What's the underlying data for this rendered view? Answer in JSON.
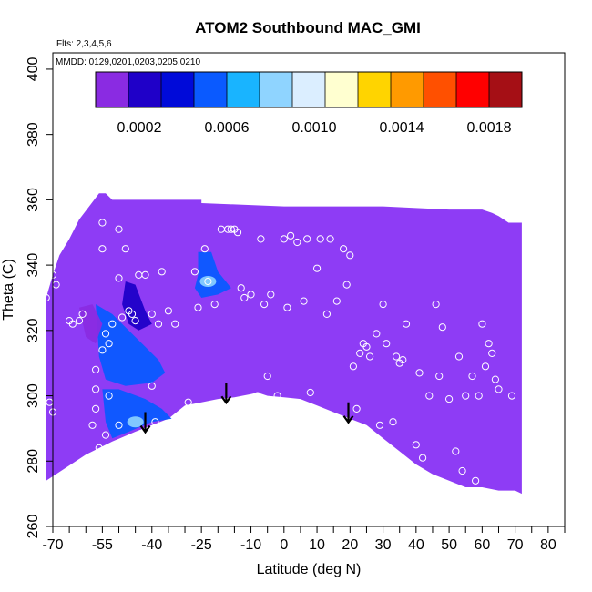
{
  "chart_data": {
    "type": "heatmap",
    "title": "ATOM2 Southbound MAC_GMI",
    "annotations": {
      "flights": "Flts: 2,3,4,5,6",
      "dates": "MMDD: 0129,0201,0203,0205,0210"
    },
    "xlabel": "Latitude (deg N)",
    "ylabel": "Theta (C)",
    "xlim": [
      -70,
      85
    ],
    "ylim": [
      260,
      405
    ],
    "x_tick_labels": [
      "-70",
      "-55",
      "-40",
      "-25",
      "-10",
      "0",
      "10",
      "20",
      "30",
      "40",
      "50",
      "60",
      "70",
      "80"
    ],
    "x_tick_values": [
      -70,
      -55,
      -40,
      -25,
      -10,
      0,
      10,
      20,
      30,
      40,
      50,
      60,
      70,
      80
    ],
    "x_minor_ticks": [
      -65,
      -60,
      -50,
      -45,
      -35,
      -30,
      -20,
      -15,
      -5,
      5,
      15,
      25,
      35,
      45,
      55,
      65,
      75,
      85
    ],
    "y_ticks": [
      260,
      280,
      300,
      320,
      340,
      360,
      380,
      400
    ],
    "colorbar": {
      "range": [
        0,
        0.00195
      ],
      "tick_values": [
        0.0002,
        0.0006,
        0.001,
        0.0014,
        0.0018
      ],
      "tick_labels": [
        "0.0002",
        "0.0006",
        "0.0010",
        "0.0014",
        "0.0018"
      ],
      "bands": [
        "#8a2be2",
        "#1f00c8",
        "#000ad9",
        "#0a5aff",
        "#19b4ff",
        "#8fd4ff",
        "#dbeeff",
        "#ffffd0",
        "#ffd400",
        "#ff9a00",
        "#ff5000",
        "#ff0000",
        "#a50f15"
      ],
      "background_value_color": "#8e3cf5"
    },
    "surface_boundary": [
      [
        -72,
        274
      ],
      [
        -60,
        282
      ],
      [
        -52,
        286
      ],
      [
        -45,
        289
      ],
      [
        -40,
        291
      ],
      [
        -35,
        293
      ],
      [
        -30,
        297
      ],
      [
        -25,
        298
      ],
      [
        -20,
        299
      ],
      [
        -15,
        299.5
      ],
      [
        -10,
        300.5
      ],
      [
        -8,
        301
      ],
      [
        -5,
        300
      ],
      [
        0,
        299.5
      ],
      [
        5,
        299
      ],
      [
        10,
        297
      ],
      [
        15,
        295
      ],
      [
        20,
        293
      ],
      [
        25,
        291
      ],
      [
        30,
        287
      ],
      [
        35,
        283
      ],
      [
        40,
        279
      ],
      [
        45,
        276
      ],
      [
        50,
        274
      ],
      [
        55,
        272
      ],
      [
        60,
        272
      ],
      [
        65,
        271
      ],
      [
        70,
        271
      ],
      [
        72,
        270
      ]
    ],
    "top_boundary": [
      [
        -72,
        330
      ],
      [
        -70,
        337
      ],
      [
        -68,
        343
      ],
      [
        -65,
        348
      ],
      [
        -62,
        354
      ],
      [
        -59,
        358
      ],
      [
        -56,
        362
      ],
      [
        -54,
        362
      ],
      [
        -52,
        360
      ],
      [
        -25,
        360
      ],
      [
        -25,
        359
      ],
      [
        0,
        358
      ],
      [
        10,
        358
      ],
      [
        30,
        358
      ],
      [
        50,
        357
      ],
      [
        60,
        357
      ],
      [
        63,
        356
      ],
      [
        65,
        355
      ],
      [
        68,
        353
      ],
      [
        72,
        353
      ]
    ],
    "enhanced_regions": [
      {
        "name": "cell-1",
        "level": 0.00045,
        "polygon": [
          [
            -57,
            328
          ],
          [
            -52,
            325
          ],
          [
            -45,
            318
          ],
          [
            -38,
            311
          ],
          [
            -36,
            307
          ],
          [
            -40,
            304
          ],
          [
            -48,
            303
          ],
          [
            -54,
            305
          ],
          [
            -56,
            312
          ]
        ]
      },
      {
        "name": "cell-2",
        "level": 0.0006,
        "polygon": [
          [
            -55,
            302
          ],
          [
            -50,
            302
          ],
          [
            -42,
            299
          ],
          [
            -37,
            296
          ],
          [
            -34,
            293
          ],
          [
            -40,
            292
          ],
          [
            -47,
            289
          ],
          [
            -52,
            287
          ],
          [
            -54,
            292
          ]
        ]
      },
      {
        "name": "cell-3",
        "level": 0.00055,
        "polygon": [
          [
            -26,
            344
          ],
          [
            -22,
            344
          ],
          [
            -20,
            338
          ],
          [
            -16,
            333
          ],
          [
            -20,
            331
          ],
          [
            -25,
            330
          ],
          [
            -27,
            333
          ],
          [
            -26,
            337
          ]
        ]
      },
      {
        "name": "cell-4",
        "level": 0.0002,
        "polygon": [
          [
            -48,
            335
          ],
          [
            -45,
            334
          ],
          [
            -42,
            326
          ],
          [
            -40,
            322
          ],
          [
            -44,
            320
          ],
          [
            -47,
            322
          ],
          [
            -49,
            328
          ]
        ]
      },
      {
        "name": "cell-5",
        "level": 0.00015,
        "polygon": [
          [
            -62,
            327
          ],
          [
            -58,
            328
          ],
          [
            -55,
            322
          ],
          [
            -57,
            316
          ],
          [
            -60,
            318
          ]
        ]
      }
    ],
    "highlights": [
      {
        "level": 0.00085,
        "point": [
          -23,
          335
        ]
      },
      {
        "level": 0.0008,
        "point": [
          -45,
          292
        ]
      }
    ],
    "arrows": [
      [
        -42,
        295
      ],
      [
        -17.5,
        304
      ],
      [
        19.5,
        298
      ]
    ],
    "points": [
      [
        -72,
        330
      ],
      [
        -71,
        298
      ],
      [
        -70,
        295
      ],
      [
        -70,
        337
      ],
      [
        -69,
        334
      ],
      [
        -65,
        323
      ],
      [
        -64,
        322
      ],
      [
        -62,
        323
      ],
      [
        -61,
        325
      ],
      [
        -58,
        291
      ],
      [
        -57,
        296
      ],
      [
        -57,
        302
      ],
      [
        -57,
        308
      ],
      [
        -57,
        282
      ],
      [
        -56,
        284
      ],
      [
        -55,
        353
      ],
      [
        -55,
        345
      ],
      [
        -55,
        314
      ],
      [
        -54,
        319
      ],
      [
        -54,
        288
      ],
      [
        -53,
        300
      ],
      [
        -53,
        316
      ],
      [
        -52,
        322
      ],
      [
        -50,
        351
      ],
      [
        -50,
        336
      ],
      [
        -50,
        291
      ],
      [
        -49,
        324
      ],
      [
        -48,
        345
      ],
      [
        -47,
        326
      ],
      [
        -46,
        325
      ],
      [
        -45,
        323
      ],
      [
        -44,
        337
      ],
      [
        -42,
        337
      ],
      [
        -40,
        325
      ],
      [
        -40,
        303
      ],
      [
        -39,
        292
      ],
      [
        -38,
        322
      ],
      [
        -37,
        338
      ],
      [
        -35,
        326
      ],
      [
        -33,
        322
      ],
      [
        -29,
        298
      ],
      [
        -27,
        338
      ],
      [
        -26,
        327
      ],
      [
        -24,
        345
      ],
      [
        -23,
        335
      ],
      [
        -21,
        328
      ],
      [
        -19,
        351
      ],
      [
        -17,
        351
      ],
      [
        -16,
        351
      ],
      [
        -15,
        351
      ],
      [
        -14,
        350
      ],
      [
        -13,
        333
      ],
      [
        -12,
        330
      ],
      [
        -10,
        331
      ],
      [
        -8,
        300
      ],
      [
        -7,
        348
      ],
      [
        -6,
        328
      ],
      [
        -5,
        306
      ],
      [
        -4,
        331
      ],
      [
        -2,
        300
      ],
      [
        0,
        348
      ],
      [
        1,
        327
      ],
      [
        2,
        349
      ],
      [
        4,
        347
      ],
      [
        6,
        329
      ],
      [
        7,
        348
      ],
      [
        8,
        301
      ],
      [
        10,
        339
      ],
      [
        11,
        348
      ],
      [
        13,
        325
      ],
      [
        14,
        348
      ],
      [
        16,
        329
      ],
      [
        18,
        345
      ],
      [
        19,
        334
      ],
      [
        20,
        343
      ],
      [
        21,
        309
      ],
      [
        22,
        296
      ],
      [
        23,
        313
      ],
      [
        24,
        316
      ],
      [
        25,
        315
      ],
      [
        26,
        312
      ],
      [
        28,
        319
      ],
      [
        29,
        291
      ],
      [
        30,
        328
      ],
      [
        31,
        316
      ],
      [
        33,
        292
      ],
      [
        34,
        312
      ],
      [
        35,
        310
      ],
      [
        36,
        311
      ],
      [
        37,
        322
      ],
      [
        40,
        285
      ],
      [
        41,
        307
      ],
      [
        42,
        281
      ],
      [
        44,
        300
      ],
      [
        46,
        328
      ],
      [
        47,
        306
      ],
      [
        48,
        321
      ],
      [
        50,
        299
      ],
      [
        52,
        283
      ],
      [
        53,
        312
      ],
      [
        54,
        277
      ],
      [
        55,
        300
      ],
      [
        57,
        306
      ],
      [
        58,
        274
      ],
      [
        59,
        300
      ],
      [
        60,
        322
      ],
      [
        61,
        309
      ],
      [
        62,
        316
      ],
      [
        63,
        313
      ],
      [
        64,
        305
      ],
      [
        65,
        302
      ],
      [
        66,
        356
      ],
      [
        67,
        356
      ],
      [
        69,
        300
      ]
    ]
  }
}
